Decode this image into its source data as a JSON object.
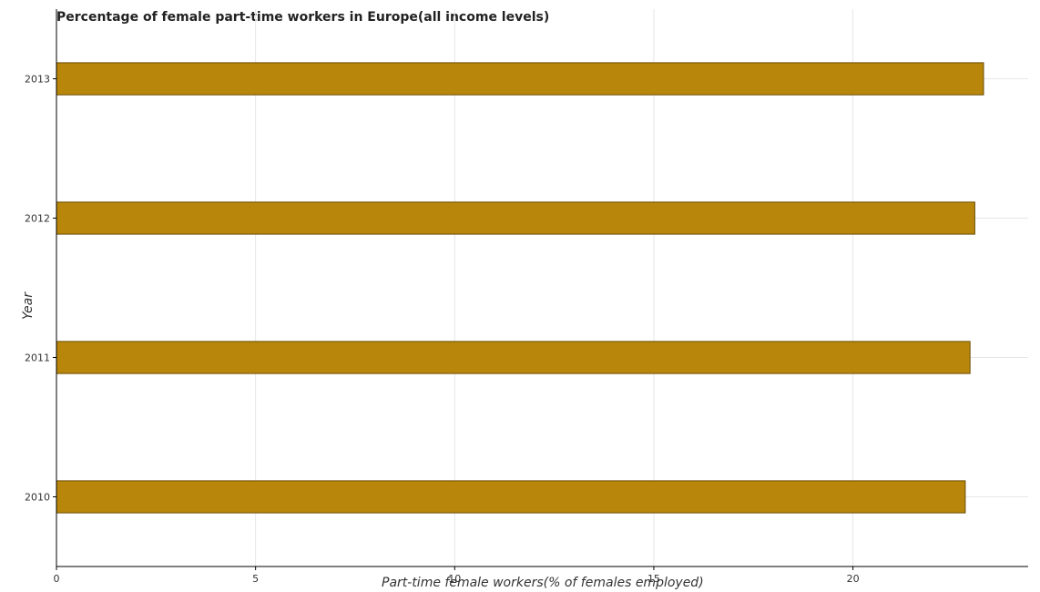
{
  "chart_data": {
    "type": "bar",
    "orientation": "horizontal",
    "title": "Percentage of female part-time workers in Europe(all income levels)",
    "xlabel": "Part-time female workers(% of females employed)",
    "ylabel": "Year",
    "categories": [
      "2010",
      "2011",
      "2012",
      "2013"
    ],
    "values": [
      22.82,
      22.94,
      23.06,
      23.28
    ],
    "xlim": [
      0,
      24.4
    ],
    "xticks": [
      0,
      5,
      10,
      15,
      20
    ],
    "grid": true,
    "bar_color": "#b8860b"
  }
}
